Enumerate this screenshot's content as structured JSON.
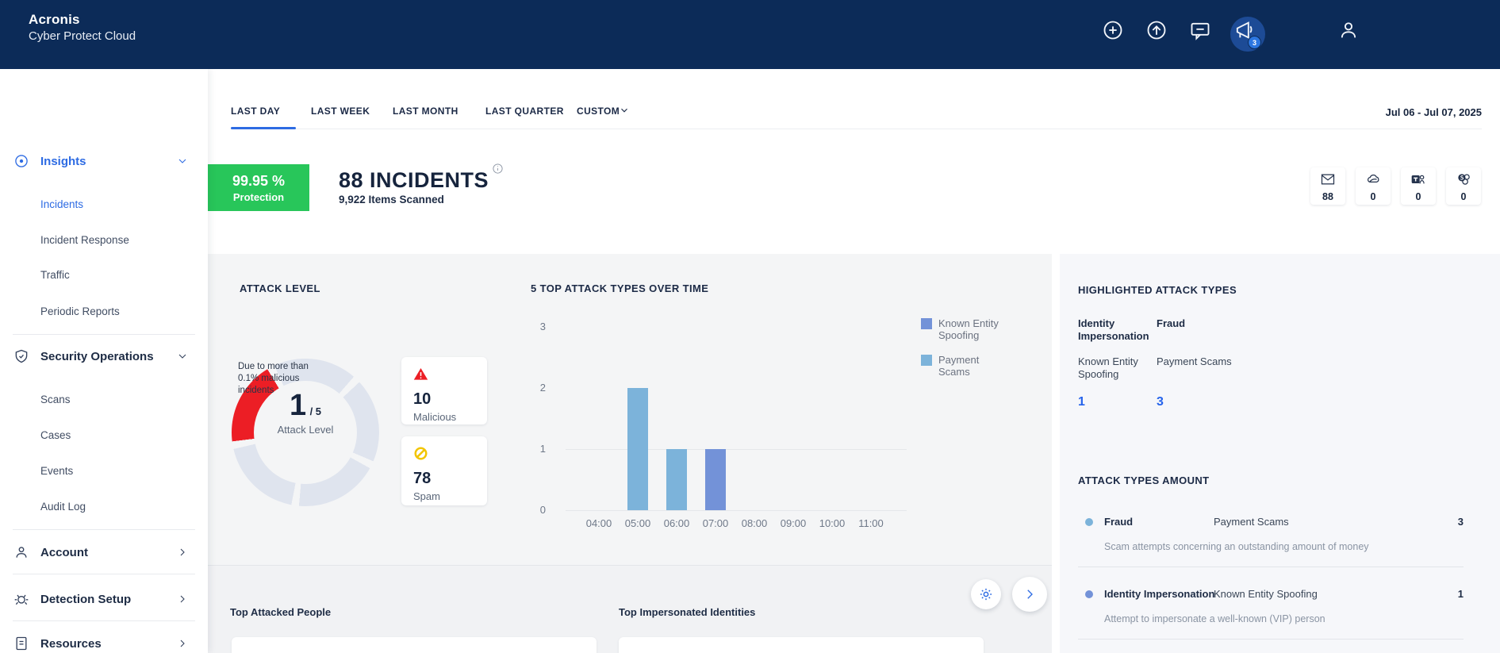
{
  "header": {
    "brand_line1": "Acronis",
    "brand_line2": "Cyber Protect Cloud",
    "notification_count": "3"
  },
  "sidebar": {
    "sections": [
      {
        "label": "Insights",
        "icon": "eye-icon",
        "state": "expanded-active"
      },
      {
        "label": "Security Operations",
        "icon": "shield-icon",
        "state": "expanded"
      },
      {
        "label": "Account",
        "icon": "person-icon",
        "state": "collapsed"
      },
      {
        "label": "Detection Setup",
        "icon": "bug-icon",
        "state": "collapsed"
      },
      {
        "label": "Resources",
        "icon": "document-icon",
        "state": "collapsed"
      }
    ],
    "insights_items": [
      "Incidents",
      "Incident Response",
      "Traffic",
      "Periodic Reports"
    ],
    "active_item": "Incidents",
    "secops_items": [
      "Scans",
      "Cases",
      "Events",
      "Audit Log"
    ]
  },
  "toolbar": {
    "tabs": [
      "LAST DAY",
      "LAST WEEK",
      "LAST MONTH",
      "LAST QUARTER"
    ],
    "active_tab": "LAST DAY",
    "custom_label": "CUSTOM",
    "date_range": "Jul 06 - Jul 07, 2025"
  },
  "summary": {
    "protection_percent": "99.95 %",
    "protection_label": "Protection",
    "incidents_title": "88 INCIDENTS",
    "items_scanned": "9,922 Items Scanned",
    "channels": [
      {
        "icon": "email-icon",
        "count": "88"
      },
      {
        "icon": "onedrive-icon",
        "count": "0"
      },
      {
        "icon": "teams-icon",
        "count": "0"
      },
      {
        "icon": "sharepoint-icon",
        "count": "0"
      }
    ]
  },
  "attack_level": {
    "title": "ATTACK LEVEL",
    "note": "Due to more than 0.1% malicious incidents",
    "value": "1",
    "max": "/ 5",
    "label": "Attack Level",
    "segments": 5,
    "filled": 1,
    "stats": [
      {
        "icon": "warning-icon",
        "value": "10",
        "label": "Malicious"
      },
      {
        "icon": "block-icon",
        "value": "78",
        "label": "Spam"
      }
    ]
  },
  "chart_data": {
    "type": "bar",
    "title": "5 TOP ATTACK TYPES OVER TIME",
    "x": [
      "04:00",
      "05:00",
      "06:00",
      "07:00",
      "08:00",
      "09:00",
      "10:00",
      "11:00"
    ],
    "series": [
      {
        "name": "Known Entity Spoofing",
        "color": "#7392D8",
        "values": [
          0,
          0,
          0,
          1,
          0,
          0,
          0,
          0
        ]
      },
      {
        "name": "Payment Scams",
        "color": "#7CB3DA",
        "values": [
          0,
          2,
          1,
          0,
          0,
          0,
          0,
          0
        ]
      }
    ],
    "yticks": [
      0,
      1,
      2,
      3
    ],
    "ylim": [
      0,
      3
    ],
    "gridlines_at": [
      0,
      1
    ],
    "legend_position": "right"
  },
  "highlighted": {
    "title": "HIGHLIGHTED ATTACK TYPES",
    "columns": [
      {
        "category": "Identity Impersonation",
        "technique": "Known Entity Spoofing",
        "count": "1"
      },
      {
        "category": "Fraud",
        "technique": "Payment Scams",
        "count": "3"
      }
    ]
  },
  "amounts": {
    "title": "ATTACK TYPES AMOUNT",
    "rows": [
      {
        "dot_color": "#7CB3DA",
        "category": "Fraud",
        "technique": "Payment Scams",
        "count": "3",
        "description": "Scam attempts concerning an outstanding amount of money"
      },
      {
        "dot_color": "#7392D8",
        "category": "Identity Impersonation",
        "technique": "Known Entity Spoofing",
        "count": "1",
        "description": "Attempt to impersonate a well-known (VIP) person"
      }
    ]
  },
  "bottom": {
    "left_title": "Top Attacked People",
    "right_title": "Top Impersonated Identities"
  },
  "colors": {
    "header_navy": "#0C2B58",
    "accent_blue": "#2D6BE3",
    "link_blue": "#2563EB",
    "green": "#28C65A",
    "red": "#EC1E25",
    "yellow": "#F2C500",
    "gauge_track": "#DFE4EE",
    "bar_light_blue": "#7CB3DA",
    "bar_periwinkle": "#7392D8"
  }
}
